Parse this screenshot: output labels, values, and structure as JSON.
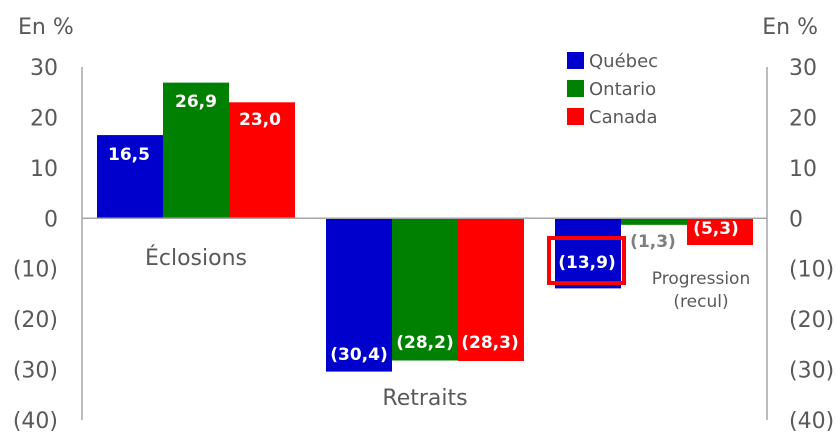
{
  "chart_data": {
    "type": "bar",
    "unit_left": "En %",
    "unit_right": "En %",
    "categories": [
      "Éclosions",
      "Retraits",
      "Progression\n(recul)"
    ],
    "series": [
      {
        "name": "Québec",
        "color": "#0000CC",
        "values": [
          16.5,
          -30.4,
          -13.9
        ],
        "labels": [
          "16,5",
          "(30,4)",
          "(13,9)"
        ]
      },
      {
        "name": "Ontario",
        "color": "#008000",
        "values": [
          26.9,
          -28.2,
          -1.3
        ],
        "labels": [
          "26,9",
          "(28,2)",
          "(1,3)"
        ]
      },
      {
        "name": "Canada",
        "color": "#FF0000",
        "values": [
          23.0,
          -28.3,
          -5.3
        ],
        "labels": [
          "23,0",
          "(28,3)",
          "(5,3)"
        ]
      }
    ],
    "ylim": [
      -40,
      30
    ],
    "yticks": [
      30,
      20,
      10,
      0,
      -10,
      -20,
      -30,
      -40
    ],
    "ytick_labels": [
      "30",
      "20",
      "10",
      "0",
      "(10)",
      "(20)",
      "(30)",
      "(40)"
    ],
    "highlight": {
      "series": "Québec",
      "category": "Progression\n(recul)"
    },
    "legend_position": "top-right"
  }
}
